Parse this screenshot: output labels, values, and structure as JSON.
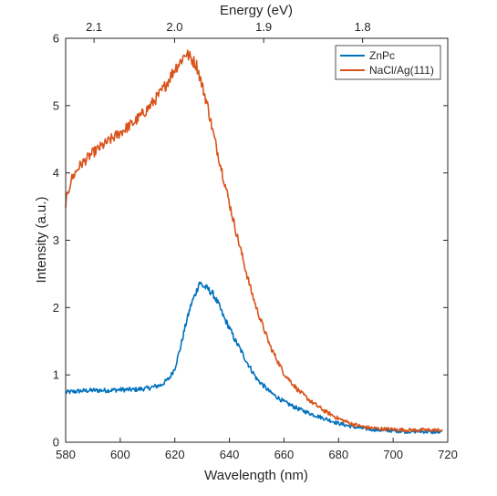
{
  "chart_data": {
    "type": "line",
    "xlabel": "Wavelength (nm)",
    "ylabel": "Intensity (a.u.)",
    "x2label": "Energy (eV)",
    "xlim": [
      580,
      720
    ],
    "ylim": [
      0,
      6
    ],
    "xticks": [
      580,
      600,
      620,
      640,
      660,
      680,
      700,
      720
    ],
    "yticks": [
      0,
      1,
      2,
      3,
      4,
      5,
      6
    ],
    "x2ticks": [
      "2.1",
      "2.0",
      "1.9",
      "1.8"
    ],
    "x2tick_energies_eV": [
      2.1,
      2.0,
      1.9,
      1.8
    ],
    "grid": false,
    "legend_position": "top-right",
    "series": [
      {
        "name": "ZnPc",
        "color": "#0072BD",
        "x": [
          580,
          585,
          590,
          595,
          600,
          605,
          610,
          615,
          618,
          620,
          622,
          624,
          626,
          628,
          629,
          630,
          632,
          634,
          636,
          638,
          640,
          642,
          644,
          646,
          648,
          650,
          655,
          660,
          665,
          670,
          675,
          680,
          685,
          690,
          695,
          700,
          705,
          710,
          715,
          718
        ],
        "y": [
          0.74,
          0.76,
          0.77,
          0.77,
          0.78,
          0.78,
          0.8,
          0.85,
          0.95,
          1.1,
          1.4,
          1.75,
          2.05,
          2.25,
          2.38,
          2.33,
          2.28,
          2.2,
          2.05,
          1.85,
          1.7,
          1.52,
          1.38,
          1.22,
          1.08,
          0.94,
          0.74,
          0.6,
          0.5,
          0.42,
          0.35,
          0.28,
          0.23,
          0.2,
          0.18,
          0.17,
          0.16,
          0.16,
          0.15,
          0.15
        ]
      },
      {
        "name": "NaCl/Ag(111)",
        "color": "#D95319",
        "x": [
          580,
          582,
          585,
          590,
          595,
          600,
          605,
          610,
          615,
          618,
          620,
          622,
          624,
          626,
          628,
          630,
          632,
          634,
          636,
          638,
          640,
          642,
          644,
          646,
          648,
          650,
          655,
          660,
          665,
          670,
          675,
          680,
          685,
          690,
          695,
          700,
          705,
          710,
          715,
          718
        ],
        "y": [
          3.55,
          3.9,
          4.1,
          4.3,
          4.45,
          4.6,
          4.75,
          4.95,
          5.2,
          5.4,
          5.55,
          5.65,
          5.78,
          5.7,
          5.6,
          5.3,
          5.0,
          4.6,
          4.25,
          3.9,
          3.55,
          3.2,
          2.88,
          2.55,
          2.25,
          1.98,
          1.42,
          1.02,
          0.78,
          0.6,
          0.46,
          0.35,
          0.27,
          0.22,
          0.2,
          0.19,
          0.18,
          0.18,
          0.18,
          0.18
        ]
      }
    ]
  }
}
